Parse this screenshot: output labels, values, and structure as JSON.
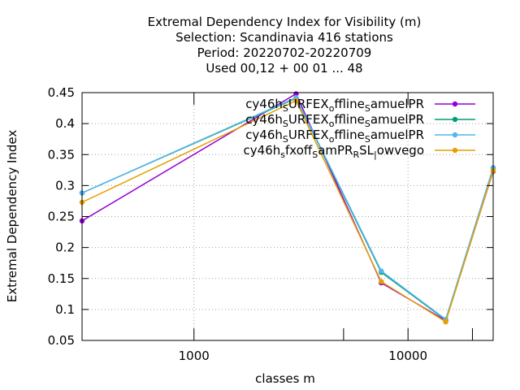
{
  "chart_data": {
    "type": "line",
    "title_lines": [
      "Extremal Dependency Index  for Visibility (m)",
      "Selection: Scandinavia    416 stations",
      "Period: 20220702-20220709",
      "Used  00,12  + 00 01 ... 48"
    ],
    "xlabel": "classes m",
    "ylabel": "Extremal Dependency Index",
    "xscale": "log",
    "xlim": [
      300,
      25000
    ],
    "ylim": [
      0.05,
      0.45
    ],
    "xticks": [
      {
        "value": 1000,
        "label": "1000"
      },
      {
        "value": 10000,
        "label": "10000"
      }
    ],
    "extra_xticks": [
      5000,
      20000
    ],
    "yticks": [
      {
        "value": 0.05,
        "label": "0.05"
      },
      {
        "value": 0.1,
        "label": "0.1"
      },
      {
        "value": 0.15,
        "label": "0.15"
      },
      {
        "value": 0.2,
        "label": "0.2"
      },
      {
        "value": 0.25,
        "label": "0.25"
      },
      {
        "value": 0.3,
        "label": "0.3"
      },
      {
        "value": 0.35,
        "label": "0.35"
      },
      {
        "value": 0.4,
        "label": "0.4"
      },
      {
        "value": 0.45,
        "label": "0.45"
      }
    ],
    "grid": true,
    "legend_position": "top-right",
    "x": [
      300,
      3000,
      7500,
      15000,
      25000
    ],
    "series": [
      {
        "legend_parts": [
          [
            "cy46h",
            ""
          ],
          [
            "S",
            "sub"
          ],
          [
            "URFEX",
            ""
          ],
          [
            "o",
            "sub"
          ],
          [
            "ffline",
            ""
          ],
          [
            "S",
            "sub"
          ],
          [
            "amuelPR",
            ""
          ]
        ],
        "color": "#9400d3",
        "values": [
          0.243,
          0.448,
          0.143,
          0.082,
          0.323
        ]
      },
      {
        "legend_parts": [
          [
            "cy46h",
            ""
          ],
          [
            "S",
            "sub"
          ],
          [
            "URFEX",
            ""
          ],
          [
            "o",
            "sub"
          ],
          [
            "ffline",
            ""
          ],
          [
            "S",
            "sub"
          ],
          [
            "amuelPR",
            ""
          ]
        ],
        "color": "#009e73",
        "values": [
          0.288,
          0.441,
          0.16,
          0.083,
          0.328
        ]
      },
      {
        "legend_parts": [
          [
            "cy46h",
            ""
          ],
          [
            "S",
            "sub"
          ],
          [
            "URFEX",
            ""
          ],
          [
            "o",
            "sub"
          ],
          [
            "ffline",
            ""
          ],
          [
            "S",
            "sub"
          ],
          [
            "amuelPR",
            ""
          ]
        ],
        "color": "#56b4e9",
        "values": [
          0.288,
          0.442,
          0.162,
          0.084,
          0.329
        ]
      },
      {
        "legend_parts": [
          [
            "cy46h",
            ""
          ],
          [
            "s",
            "sub"
          ],
          [
            "fxoff",
            ""
          ],
          [
            "S",
            "sub"
          ],
          [
            "amPR",
            ""
          ],
          [
            "R",
            "sub"
          ],
          [
            "SL",
            ""
          ],
          [
            "|",
            "sub"
          ],
          [
            "owvego",
            ""
          ]
        ],
        "color": "#e69f00",
        "values": [
          0.273,
          0.437,
          0.145,
          0.08,
          0.324
        ]
      }
    ]
  }
}
